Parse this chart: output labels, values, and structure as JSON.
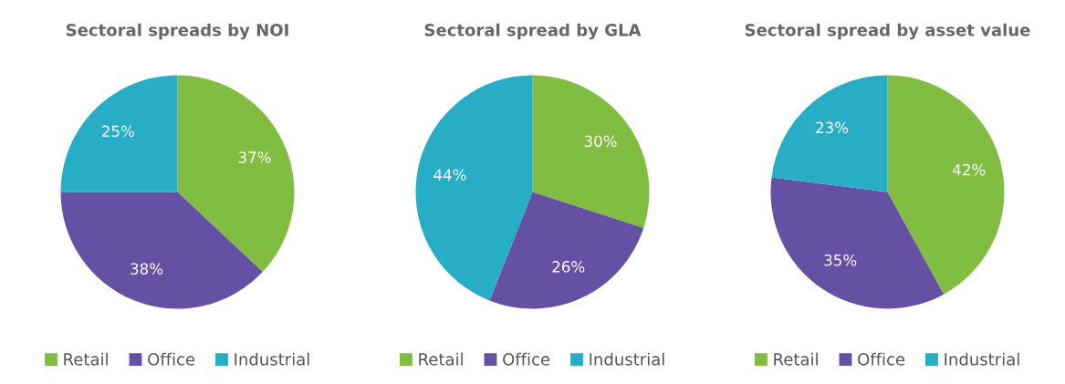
{
  "chart_data": [
    {
      "type": "pie",
      "title": "Sectoral spreads by NOI",
      "categories": [
        "Retail",
        "Office",
        "Industrial"
      ],
      "values": [
        37,
        38,
        25
      ],
      "colors": [
        "#80bd41",
        "#6451a3",
        "#27adc6"
      ],
      "value_labels": [
        "37%",
        "38%",
        "25%"
      ],
      "legend": "bottom"
    },
    {
      "type": "pie",
      "title": "Sectoral spread by GLA",
      "categories": [
        "Retail",
        "Office",
        "Industrial"
      ],
      "values": [
        30,
        26,
        44
      ],
      "colors": [
        "#80bd41",
        "#6451a3",
        "#27adc6"
      ],
      "value_labels": [
        "30%",
        "26%",
        "44%"
      ],
      "legend": "bottom"
    },
    {
      "type": "pie",
      "title": "Sectoral spread by asset value",
      "categories": [
        "Retail",
        "Office",
        "Industrial"
      ],
      "values": [
        42,
        35,
        23
      ],
      "colors": [
        "#80bd41",
        "#6451a3",
        "#27adc6"
      ],
      "value_labels": [
        "42%",
        "35%",
        "23%"
      ],
      "legend": "bottom"
    }
  ]
}
